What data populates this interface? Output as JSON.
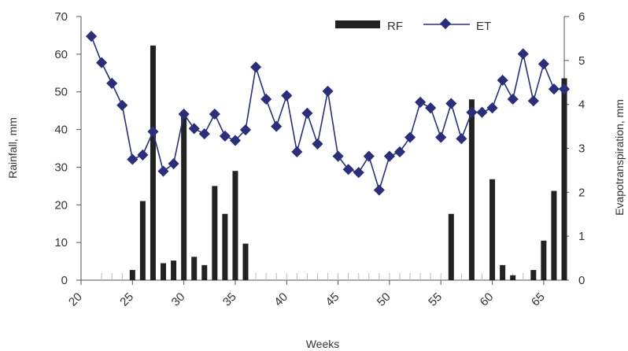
{
  "chart_data": {
    "type": "bar+line",
    "xlabel": "Weeks",
    "ylabel_left": "Rainfall, mm",
    "ylabel_right": "Evapotranspiration, mm",
    "xlim": [
      20,
      67
    ],
    "ylim_left": [
      0,
      70
    ],
    "ylim_right": [
      0,
      6
    ],
    "x_ticks": [
      20,
      25,
      30,
      35,
      40,
      45,
      50,
      55,
      60,
      65
    ],
    "y_ticks_left": [
      0,
      10,
      20,
      30,
      40,
      50,
      60,
      70
    ],
    "y_ticks_right": [
      0,
      1,
      2,
      3,
      4,
      5,
      6
    ],
    "grid": false,
    "legend_position": "top-right",
    "colors": {
      "rf": "#222222",
      "et": "#2b2f7a"
    },
    "series": [
      {
        "name": "RF",
        "kind": "bar",
        "axis": "left",
        "x": [
          23,
          24,
          25,
          26,
          27,
          28,
          29,
          30,
          31,
          32,
          33,
          34,
          35,
          36,
          56,
          58,
          60,
          61,
          62,
          64,
          65,
          66,
          67
        ],
        "values": [
          0,
          0,
          2.7,
          21,
          62.3,
          4.5,
          5.2,
          43.5,
          6.2,
          4.0,
          25,
          17.6,
          29,
          9.7,
          17.6,
          48,
          26.8,
          4.0,
          1.3,
          2.7,
          10.5,
          23.7,
          53.6
        ]
      },
      {
        "name": "ET",
        "kind": "line",
        "axis": "right",
        "x": [
          21,
          22,
          23,
          24,
          25,
          26,
          27,
          28,
          29,
          30,
          31,
          32,
          33,
          34,
          35,
          36,
          37,
          38,
          39,
          40,
          41,
          42,
          43,
          44,
          45,
          46,
          47,
          48,
          49,
          50,
          51,
          52,
          53,
          54,
          55,
          56,
          57,
          58,
          59,
          60,
          61,
          62,
          63,
          64,
          65,
          66,
          67
        ],
        "values": [
          5.55,
          4.95,
          4.48,
          3.98,
          2.75,
          2.85,
          3.38,
          2.48,
          2.65,
          3.78,
          3.45,
          3.33,
          3.78,
          3.28,
          3.18,
          3.42,
          4.85,
          4.12,
          3.5,
          4.2,
          2.92,
          3.8,
          3.1,
          4.3,
          2.82,
          2.52,
          2.45,
          2.82,
          2.05,
          2.82,
          2.92,
          3.25,
          4.05,
          3.92,
          3.25,
          4.02,
          3.22,
          3.82,
          3.82,
          3.92,
          4.55,
          4.12,
          5.15,
          4.08,
          4.92,
          4.35,
          4.35
        ]
      }
    ]
  }
}
